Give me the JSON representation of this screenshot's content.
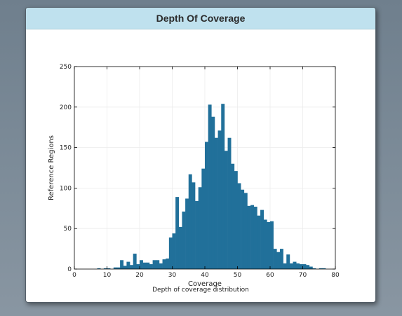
{
  "panel": {
    "title": "Depth Of Coverage",
    "caption": "Depth of coverage distribution"
  },
  "colors": {
    "bar": "#21709a",
    "header_bg": "#bfe1ee",
    "grid": "#ececec"
  },
  "chart_data": {
    "type": "bar",
    "title": "Depth Of Coverage",
    "xlabel": "Coverage",
    "ylabel": "Reference Regions",
    "xlim": [
      0,
      80
    ],
    "ylim": [
      0,
      250
    ],
    "xticks": [
      0,
      10,
      20,
      30,
      40,
      50,
      60,
      70,
      80
    ],
    "yticks": [
      0,
      50,
      100,
      150,
      200,
      250
    ],
    "grid": true,
    "bin_width": 1,
    "x": [
      7,
      8,
      9,
      10,
      11,
      12,
      13,
      14,
      15,
      16,
      17,
      18,
      19,
      20,
      21,
      22,
      23,
      24,
      25,
      26,
      27,
      28,
      29,
      30,
      31,
      32,
      33,
      34,
      35,
      36,
      37,
      38,
      39,
      40,
      41,
      42,
      43,
      44,
      45,
      46,
      47,
      48,
      49,
      50,
      51,
      52,
      53,
      54,
      55,
      56,
      57,
      58,
      59,
      60,
      61,
      62,
      63,
      64,
      65,
      66,
      67,
      68,
      69,
      70,
      71,
      72,
      73,
      74,
      75,
      76
    ],
    "values": [
      1,
      0,
      1,
      1,
      0,
      2,
      2,
      11,
      4,
      9,
      5,
      19,
      6,
      11,
      8,
      8,
      6,
      11,
      11,
      7,
      12,
      13,
      39,
      44,
      89,
      52,
      71,
      87,
      117,
      107,
      84,
      101,
      124,
      157,
      203,
      188,
      162,
      171,
      204,
      146,
      162,
      130,
      121,
      106,
      98,
      94,
      78,
      79,
      77,
      66,
      73,
      61,
      58,
      59,
      25,
      21,
      25,
      7,
      18,
      7,
      9,
      7,
      6,
      6,
      5,
      3,
      1,
      0,
      1,
      1
    ]
  }
}
